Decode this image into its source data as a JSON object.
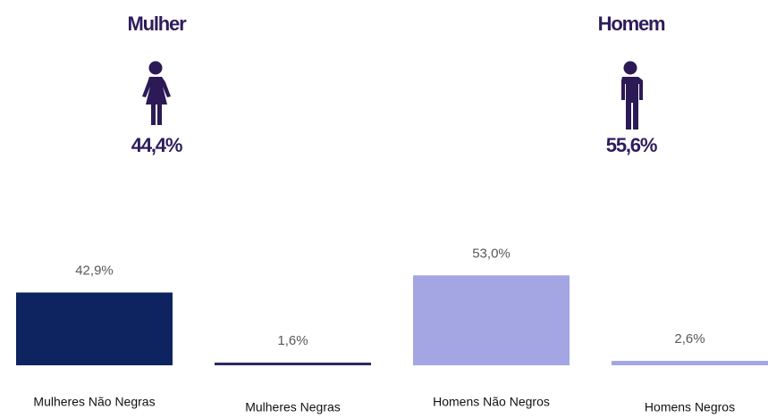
{
  "chart_data": {
    "type": "bar",
    "groups": [
      {
        "title": "Mulher",
        "share": "44,4%"
      },
      {
        "title": "Homem",
        "share": "55,6%"
      }
    ],
    "categories": [
      "Mulheres Não Negras",
      "Mulheres Negras",
      "Homens Não Negros",
      "Homens Negros"
    ],
    "values": [
      42.9,
      1.6,
      53.0,
      2.6
    ],
    "value_labels": [
      "42,9%",
      "1,6%",
      "53,0%",
      "2,6%"
    ],
    "colors": [
      "#0d2461",
      "#2a2a66",
      "#a3a6e3",
      "#a3a6e3"
    ]
  }
}
